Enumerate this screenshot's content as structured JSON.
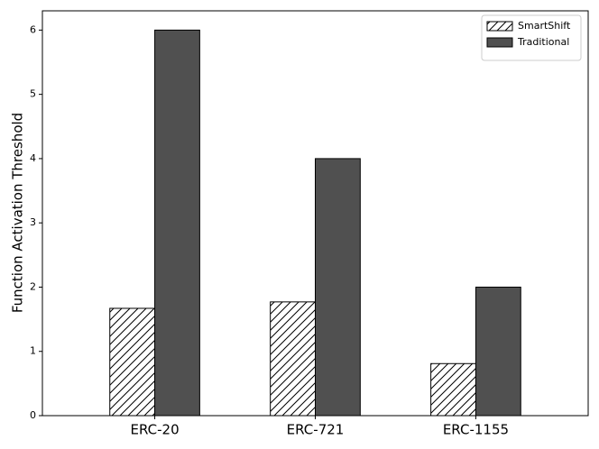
{
  "chart_data": {
    "type": "bar",
    "y_label": "Function Activation Threshold",
    "categories": [
      "ERC-20",
      "ERC-721",
      "ERC-1155"
    ],
    "series": [
      {
        "name": "SmartShift",
        "color": "#ffffff",
        "hatch": "/",
        "values": [
          1.67,
          1.77,
          0.81
        ]
      },
      {
        "name": "Traditional",
        "color": "#505050",
        "values": [
          6,
          4,
          2
        ]
      }
    ],
    "ylim": [
      0,
      6.3
    ],
    "yticks": [
      0,
      1,
      2,
      3,
      4,
      5,
      6
    ],
    "legend": "upper right"
  }
}
